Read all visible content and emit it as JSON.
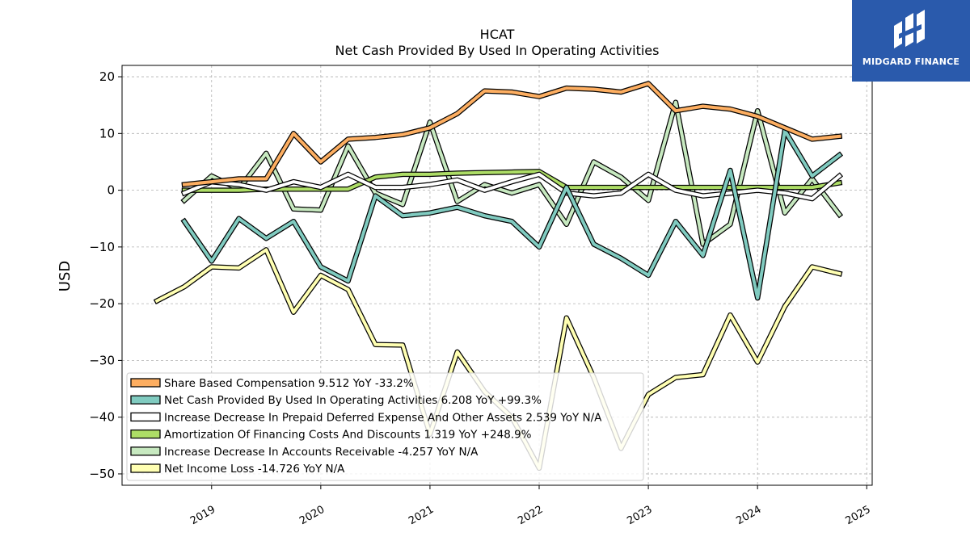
{
  "brand": {
    "name": "MIDGARD FINANCE",
    "color": "#2a5aac"
  },
  "chart_data": {
    "type": "line",
    "title": "HCAT",
    "subtitle": "Net Cash Provided By Used In Operating Activities",
    "ylabel": "USD",
    "xlabel": "",
    "ylim": [
      -52,
      22
    ],
    "xlim": [
      2018.18,
      2025.05
    ],
    "yticks": [
      20,
      10,
      0,
      -10,
      -20,
      -30,
      -40,
      -50
    ],
    "ytick_labels": [
      "20",
      "10",
      "0",
      "−10",
      "−20",
      "−30",
      "−40",
      "−50"
    ],
    "xticks": [
      2019,
      2020,
      2021,
      2022,
      2023,
      2024,
      2025
    ],
    "xtick_labels": [
      "2019",
      "2020",
      "2021",
      "2022",
      "2023",
      "2024",
      "2025"
    ],
    "grid": true,
    "legend_position": "lower-left",
    "series": [
      {
        "name": "Net Income Loss",
        "legend": "Net Income Loss  -14.726 YoY N/A",
        "color": "#ffffb2",
        "x": [
          2018.5,
          2018.75,
          2019.0,
          2019.25,
          2019.5,
          2019.75,
          2020.0,
          2020.25,
          2020.5,
          2020.75,
          2021.0,
          2021.25,
          2021.5,
          2021.75,
          2022.0,
          2022.25,
          2022.5,
          2022.75,
          2023.0,
          2023.25,
          2023.5,
          2023.75,
          2024.0,
          2024.25,
          2024.5,
          2024.75
        ],
        "values": [
          -19.5,
          -17.0,
          -13.5,
          -13.7,
          -10.5,
          -21.5,
          -15.0,
          -17.5,
          -27.2,
          -27.3,
          -43.0,
          -28.5,
          -35.5,
          -40.0,
          -49.0,
          -22.5,
          -33.0,
          -45.5,
          -36.0,
          -33.0,
          -32.5,
          -22.0,
          -30.3,
          -20.5,
          -13.5,
          -14.7
        ]
      },
      {
        "name": "Increase Decrease In Accounts Receivable",
        "legend": "Increase Decrease In Accounts Receivable  -4.257 YoY N/A",
        "color": "#c7e9c0",
        "x": [
          2018.75,
          2019.0,
          2019.25,
          2019.5,
          2019.75,
          2020.0,
          2020.25,
          2020.5,
          2020.75,
          2021.0,
          2021.25,
          2021.5,
          2021.75,
          2022.0,
          2022.25,
          2022.5,
          2022.75,
          2023.0,
          2023.25,
          2023.5,
          2023.75,
          2024.0,
          2024.25,
          2024.5,
          2024.75
        ],
        "values": [
          -1.8,
          2.5,
          0.2,
          6.5,
          -3.3,
          -3.5,
          7.8,
          -0.5,
          -2.5,
          12.0,
          -2.0,
          1.0,
          -0.5,
          1.0,
          -6.0,
          5.0,
          2.3,
          -1.8,
          15.5,
          -9.5,
          -6.0,
          14.0,
          -4.0,
          2.0,
          -4.3
        ]
      },
      {
        "name": "Amortization Of Financing Costs And Discounts",
        "legend": "Amortization Of Financing Costs And Discounts  1.319 YoY +248.9%",
        "color": "#addd66",
        "x": [
          2018.75,
          2019.0,
          2019.25,
          2019.5,
          2019.75,
          2020.0,
          2020.25,
          2020.5,
          2020.75,
          2021.0,
          2021.25,
          2021.5,
          2021.75,
          2022.0,
          2022.25,
          2022.5,
          2022.75,
          2023.0,
          2023.25,
          2023.5,
          2023.75,
          2024.0,
          2024.25,
          2024.5,
          2024.75
        ],
        "values": [
          0.0,
          0.0,
          0.0,
          0.2,
          0.2,
          0.2,
          0.2,
          2.3,
          2.8,
          2.8,
          3.0,
          3.1,
          3.2,
          3.3,
          0.5,
          0.5,
          0.5,
          0.5,
          0.5,
          0.5,
          0.5,
          0.5,
          0.5,
          0.5,
          1.3
        ]
      },
      {
        "name": "Increase Decrease In Prepaid Deferred Expense And Other Assets",
        "legend": "Increase Decrease In Prepaid Deferred Expense And Other Assets  2.539 YoY N/A",
        "color": "#ffffff",
        "x": [
          2018.75,
          2019.0,
          2019.25,
          2019.5,
          2019.75,
          2020.0,
          2020.25,
          2020.5,
          2020.75,
          2021.0,
          2021.25,
          2021.5,
          2021.75,
          2022.0,
          2022.25,
          2022.5,
          2022.75,
          2023.0,
          2023.25,
          2023.5,
          2023.75,
          2024.0,
          2024.25,
          2024.5,
          2024.75
        ],
        "values": [
          -0.5,
          1.5,
          1.0,
          0.0,
          1.5,
          0.5,
          2.8,
          0.5,
          0.5,
          1.0,
          1.8,
          0.0,
          1.5,
          2.8,
          -0.5,
          -1.0,
          -0.5,
          2.8,
          0.0,
          -1.0,
          -0.5,
          0.0,
          -0.5,
          -1.5,
          2.5
        ]
      },
      {
        "name": "Net Cash Provided By Used In Operating Activities",
        "legend": "Net Cash Provided By Used In Operating Activities  6.208 YoY +99.3%",
        "color": "#80cbc0",
        "x": [
          2018.75,
          2019.0,
          2019.25,
          2019.5,
          2019.75,
          2020.0,
          2020.25,
          2020.5,
          2020.75,
          2021.0,
          2021.25,
          2021.5,
          2021.75,
          2022.0,
          2022.25,
          2022.5,
          2022.75,
          2023.0,
          2023.25,
          2023.5,
          2023.75,
          2024.0,
          2024.25,
          2024.5,
          2024.75
        ],
        "values": [
          -5.5,
          -12.5,
          -5.0,
          -8.5,
          -5.5,
          -13.5,
          -16.0,
          -1.0,
          -4.5,
          -4.0,
          -3.0,
          -4.5,
          -5.5,
          -10.0,
          0.5,
          -9.5,
          -12.0,
          -15.0,
          -5.5,
          -11.5,
          3.5,
          -19.0,
          10.5,
          2.5,
          6.2
        ]
      },
      {
        "name": "Share Based Compensation",
        "legend": "Share Based Compensation  9.512 YoY -33.2%",
        "color": "#fdae61",
        "x": [
          2018.75,
          2019.0,
          2019.25,
          2019.5,
          2019.75,
          2020.0,
          2020.25,
          2020.5,
          2020.75,
          2021.0,
          2021.25,
          2021.5,
          2021.75,
          2022.0,
          2022.25,
          2022.5,
          2022.75,
          2023.0,
          2023.25,
          2023.5,
          2023.75,
          2024.0,
          2024.25,
          2024.5,
          2024.75
        ],
        "values": [
          1.0,
          1.5,
          2.0,
          2.0,
          10.0,
          5.0,
          9.0,
          9.3,
          9.8,
          11.0,
          13.5,
          17.5,
          17.3,
          16.5,
          18.0,
          17.8,
          17.3,
          18.8,
          14.0,
          14.8,
          14.3,
          13.0,
          11.0,
          9.0,
          9.5
        ]
      }
    ],
    "legend_order": [
      "Share Based Compensation",
      "Net Cash Provided By Used In Operating Activities",
      "Increase Decrease In Prepaid Deferred Expense And Other Assets",
      "Amortization Of Financing Costs And Discounts",
      "Increase Decrease In Accounts Receivable",
      "Net Income Loss"
    ]
  }
}
